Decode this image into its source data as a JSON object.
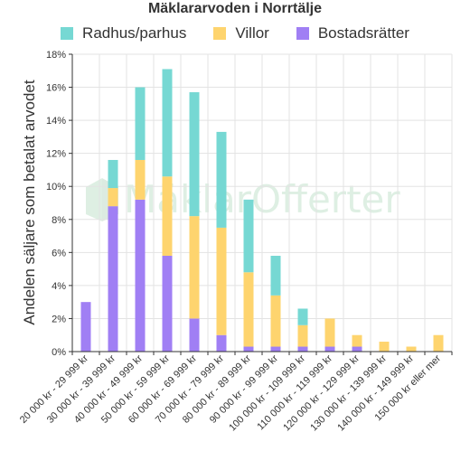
{
  "chart_data": {
    "type": "bar",
    "stacked": true,
    "title": "Mäklararvoden i Norrtälje",
    "ylabel": "Andelen säljare som betalat arvodet",
    "xlabel": "",
    "ylim": [
      0,
      18
    ],
    "yticks": [
      "0%",
      "2%",
      "4%",
      "6%",
      "8%",
      "10%",
      "12%",
      "14%",
      "16%",
      "18%"
    ],
    "grid": true,
    "legend_position": "top",
    "categories": [
      "20 000 kr - 29 999 kr",
      "30 000 kr - 39 999 kr",
      "40 000 kr - 49 999 kr",
      "50 000 kr - 59 999 kr",
      "60 000 kr - 69 999 kr",
      "70 000 kr - 79 999 kr",
      "80 000 kr - 89 999 kr",
      "90 000 kr - 99 999 kr",
      "100 000 kr - 109 999 kr",
      "110 000 kr - 119 999 kr",
      "120 000 kr - 129 999 kr",
      "130 000 kr - 139 999 kr",
      "140 000 kr - 149 999 kr",
      "150 000 kr eller mer"
    ],
    "series": [
      {
        "name": "Bostadsrätter",
        "color": "#a07ff4",
        "values": [
          3.0,
          8.8,
          9.2,
          5.8,
          2.0,
          1.0,
          0.3,
          0.3,
          0.3,
          0.3,
          0.3,
          0,
          0,
          0
        ]
      },
      {
        "name": "Villor",
        "color": "#fed46e",
        "values": [
          0,
          1.1,
          2.4,
          4.8,
          6.2,
          6.5,
          4.5,
          3.1,
          1.3,
          1.7,
          0.7,
          0.6,
          0.3,
          1.0
        ]
      },
      {
        "name": "Radhus/parhus",
        "color": "#76d8d3",
        "values": [
          0,
          1.7,
          4.4,
          6.5,
          7.5,
          5.8,
          4.4,
          2.4,
          1.0,
          0,
          0,
          0,
          0,
          0
        ]
      }
    ]
  },
  "legend": [
    {
      "label": "Radhus/parhus",
      "color": "#76d8d3"
    },
    {
      "label": "Villor",
      "color": "#fed46e"
    },
    {
      "label": "Bostadsrätter",
      "color": "#a07ff4"
    }
  ],
  "watermark": {
    "text": "MäklarOfferter",
    "icon": "house-logo-icon"
  }
}
